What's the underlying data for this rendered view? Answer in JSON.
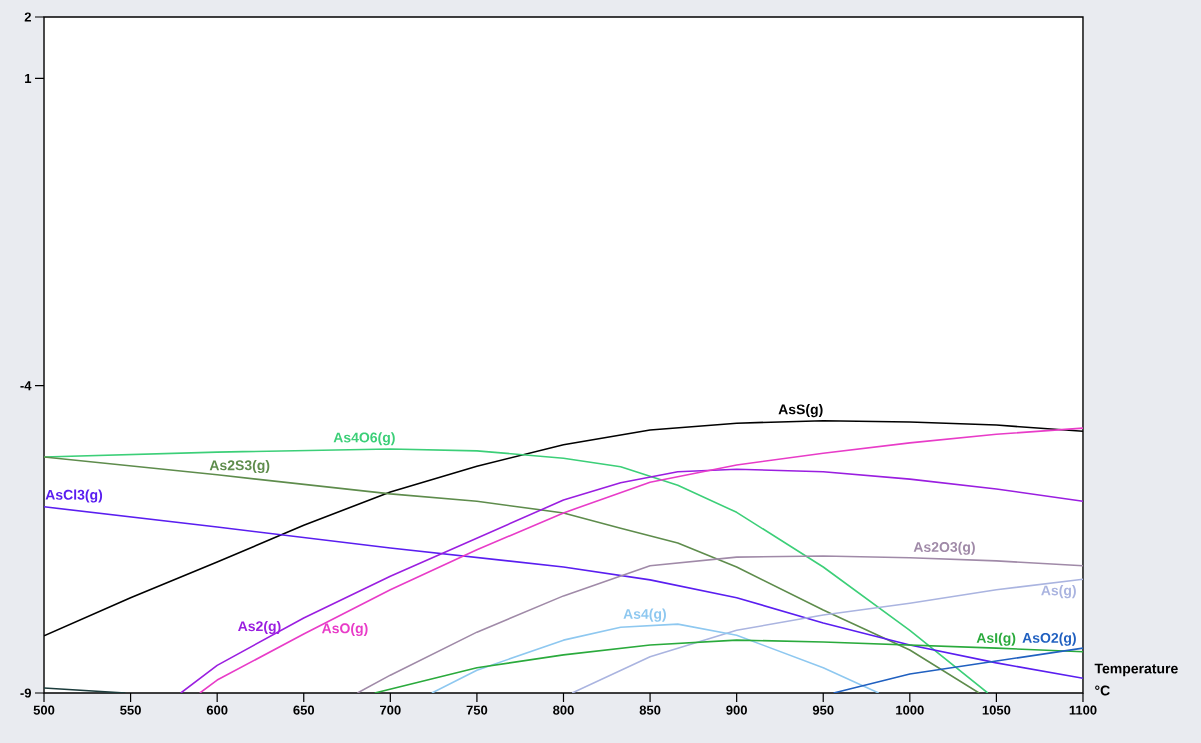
{
  "chart_data": {
    "type": "line",
    "xlabel": "Temperature °C",
    "xlim": [
      500,
      1100
    ],
    "xticks": [
      500,
      550,
      600,
      650,
      700,
      750,
      800,
      850,
      900,
      950,
      1000,
      1050,
      1100
    ],
    "ylim": [
      -9,
      2
    ],
    "yticks": [
      -9,
      -4,
      1,
      2
    ],
    "grid": false,
    "marker": "none",
    "line_style": "solid",
    "series": [
      {
        "name": "AsS(g)",
        "color": "#000000",
        "x": [
          500,
          550,
          600,
          650,
          700,
          750,
          800,
          850,
          900,
          950,
          1000,
          1050,
          1100
        ],
        "values": [
          -8.07,
          -7.45,
          -6.87,
          -6.27,
          -5.73,
          -5.31,
          -4.96,
          -4.72,
          -4.61,
          -4.57,
          -4.59,
          -4.64,
          -4.74
        ]
      },
      {
        "name": "As4O6(g)",
        "color": "#3ccf78",
        "x": [
          500,
          600,
          700,
          750,
          800,
          833,
          866,
          900,
          950,
          1000,
          1045
        ],
        "values": [
          -5.16,
          -5.08,
          -5.03,
          -5.06,
          -5.18,
          -5.32,
          -5.62,
          -6.06,
          -6.95,
          -7.98,
          -9.0
        ]
      },
      {
        "name": "As2S3(g)",
        "color": "#5e8c4c",
        "x": [
          500,
          600,
          700,
          750,
          800,
          833,
          866,
          900,
          950,
          1000,
          1040
        ],
        "values": [
          -5.16,
          -5.45,
          -5.76,
          -5.88,
          -6.07,
          -6.32,
          -6.56,
          -6.95,
          -7.65,
          -8.3,
          -9.0
        ]
      },
      {
        "name": "AsCl3(g)",
        "color": "#5a1ef0",
        "x": [
          500,
          600,
          700,
          800,
          850,
          900,
          950,
          1000,
          1050,
          1100
        ],
        "values": [
          -5.97,
          -6.3,
          -6.64,
          -6.95,
          -7.16,
          -7.45,
          -7.86,
          -8.22,
          -8.51,
          -8.76
        ]
      },
      {
        "name": "As2(g)",
        "color": "#9a1ee0",
        "x": [
          579,
          600,
          650,
          700,
          750,
          800,
          833,
          866,
          900,
          950,
          1000,
          1050,
          1100
        ],
        "values": [
          -9.0,
          -8.55,
          -7.78,
          -7.1,
          -6.48,
          -5.86,
          -5.58,
          -5.4,
          -5.36,
          -5.4,
          -5.52,
          -5.68,
          -5.88
        ]
      },
      {
        "name": "AsO(g)",
        "color": "#e83cc8",
        "x": [
          590,
          600,
          650,
          700,
          750,
          800,
          850,
          900,
          950,
          1000,
          1050,
          1100
        ],
        "values": [
          -9.0,
          -8.79,
          -8.04,
          -7.32,
          -6.67,
          -6.07,
          -5.57,
          -5.29,
          -5.1,
          -4.93,
          -4.79,
          -4.69
        ]
      },
      {
        "name": "As2O3(g)",
        "color": "#a08aa8",
        "x": [
          681,
          700,
          750,
          800,
          850,
          900,
          950,
          1000,
          1050,
          1100
        ],
        "values": [
          -9.0,
          -8.71,
          -8.01,
          -7.42,
          -6.93,
          -6.79,
          -6.77,
          -6.8,
          -6.85,
          -6.93
        ]
      },
      {
        "name": "As(g)",
        "color": "#aab4e0",
        "x": [
          805,
          850,
          900,
          950,
          1000,
          1050,
          1100
        ],
        "values": [
          -9.0,
          -8.41,
          -7.98,
          -7.73,
          -7.54,
          -7.32,
          -7.15
        ]
      },
      {
        "name": "As4(g)",
        "color": "#8ec8f0",
        "x": [
          724,
          750,
          800,
          833,
          866,
          900,
          950,
          982
        ],
        "values": [
          -9.0,
          -8.63,
          -8.14,
          -7.93,
          -7.88,
          -8.06,
          -8.59,
          -9.0
        ]
      },
      {
        "name": "AsI(g)",
        "color": "#2aaa3c",
        "x": [
          691,
          750,
          800,
          850,
          900,
          950,
          1000,
          1050,
          1100
        ],
        "values": [
          -9.0,
          -8.59,
          -8.38,
          -8.22,
          -8.14,
          -8.17,
          -8.22,
          -8.27,
          -8.33
        ]
      },
      {
        "name": "AsO2(g)",
        "color": "#2060c0",
        "x": [
          956,
          1000,
          1050,
          1100
        ],
        "values": [
          -9.0,
          -8.69,
          -8.48,
          -8.27
        ]
      },
      {
        "color": "#1c3c3c",
        "x": [
          500,
          547
        ],
        "values": [
          -8.92,
          -9.0
        ]
      }
    ]
  }
}
